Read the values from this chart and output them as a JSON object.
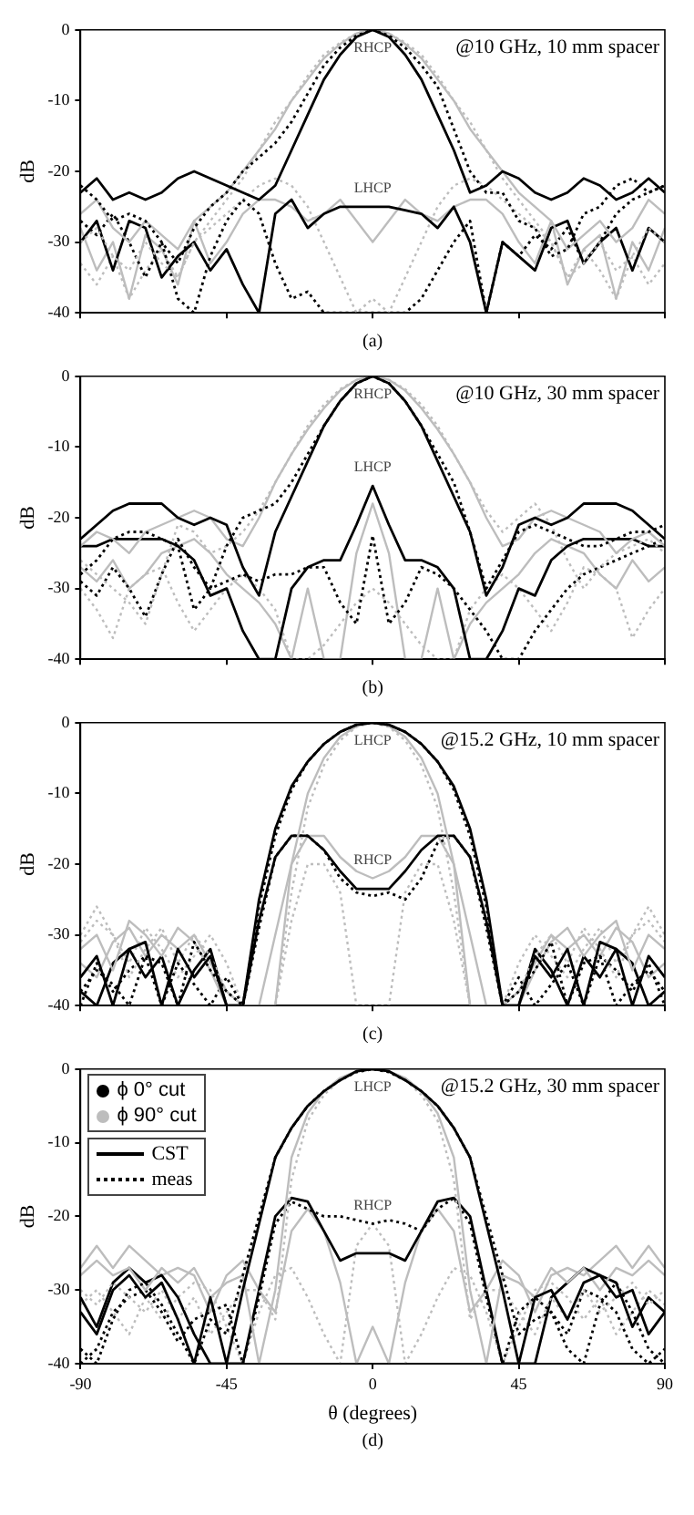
{
  "chart_data": [
    {
      "type": "line",
      "ylabel": "dB",
      "xlim": [
        -90,
        90
      ],
      "xticks": [
        -90,
        -45,
        0,
        45,
        90
      ],
      "ylim": [
        -40,
        0
      ],
      "yticks": [
        -40,
        -30,
        -20,
        -10,
        0
      ],
      "tick_labels": "y",
      "marker": "none",
      "x": [
        -90,
        -85,
        -80,
        -75,
        -70,
        -65,
        -60,
        -55,
        -50,
        -45,
        -40,
        -35,
        -30,
        -25,
        -20,
        -15,
        -10,
        -5,
        0,
        5,
        10,
        15,
        20,
        25,
        30,
        35,
        40,
        45,
        50,
        55,
        60,
        65,
        70,
        75,
        80,
        85,
        90
      ],
      "annotations": [
        "@10 GHz, 10 mm spacer",
        "(a)",
        "RHCP",
        "LHCP"
      ],
      "series": [
        {
          "color": "#000000",
          "line_style": "solid",
          "values": [
            -23,
            -21,
            -24,
            -23,
            -24,
            -23,
            -21,
            -20,
            -21,
            -22,
            -23,
            -24,
            -22,
            -17,
            -12,
            -7,
            -3.5,
            -1,
            0,
            -1,
            -3.5,
            -7,
            -12,
            -17,
            -23,
            -22,
            -20,
            -21,
            -23,
            -24,
            -23,
            -21,
            -22,
            -24,
            -23,
            -21,
            -23
          ]
        },
        {
          "color": "#000000",
          "line_style": "dotted",
          "values": [
            -22,
            -24,
            -27,
            -26,
            -27,
            -30,
            -33,
            -28,
            -25,
            -23,
            -20,
            -18,
            -16,
            -13,
            -9,
            -5,
            -2.5,
            -0.8,
            0,
            -0.8,
            -2.5,
            -5,
            -8,
            -14,
            -20,
            -23,
            -23,
            -27,
            -28,
            -32,
            -31,
            -26,
            -25,
            -22,
            -21,
            -23,
            -22
          ]
        },
        {
          "color": "#bdbdbd",
          "line_style": "solid",
          "values": [
            -26,
            -24,
            -28,
            -30,
            -27,
            -29,
            -31,
            -27,
            -25,
            -23,
            -20,
            -17,
            -14,
            -10,
            -7,
            -4,
            -2,
            -0.5,
            0,
            -0.5,
            -2,
            -4,
            -7,
            -10,
            -14,
            -17,
            -20,
            -23,
            -25,
            -27,
            -31,
            -29,
            -27,
            -30,
            -28,
            -24,
            -26
          ]
        },
        {
          "color": "#bdbdbd",
          "line_style": "dotted",
          "values": [
            -30,
            -28,
            -32,
            -34,
            -30,
            -33,
            -35,
            -30,
            -27,
            -24,
            -21,
            -17,
            -13,
            -10,
            -6.5,
            -3.5,
            -1.8,
            -0.5,
            0,
            -0.5,
            -1.8,
            -3.5,
            -6.5,
            -10,
            -13,
            -17,
            -21,
            -24,
            -27,
            -30,
            -35,
            -33,
            -30,
            -34,
            -32,
            -28,
            -30
          ]
        },
        {
          "color": "#000000",
          "line_style": "solid",
          "values": [
            -30,
            -27,
            -34,
            -27,
            -28,
            -35,
            -32,
            -30,
            -34,
            -31,
            -36,
            -40,
            -26,
            -24,
            -28,
            -26,
            -25,
            -25,
            -25,
            -25,
            -25.5,
            -26,
            -28,
            -25,
            -30,
            -40,
            -30,
            -32,
            -34,
            -28,
            -27,
            -33,
            -30,
            -28,
            -34,
            -28,
            -30
          ]
        },
        {
          "color": "#000000",
          "line_style": "dotted",
          "values": [
            -27,
            -29,
            -26,
            -30,
            -35,
            -30,
            -38,
            -40,
            -32,
            -27,
            -24,
            -26,
            -33,
            -38,
            -37,
            -40,
            -40,
            -40,
            -40,
            -40,
            -40,
            -38,
            -34,
            -30,
            -27,
            -40,
            -30,
            -32,
            -29,
            -31,
            -28,
            -33,
            -30,
            -26,
            -24,
            -23,
            -22
          ]
        },
        {
          "color": "#bdbdbd",
          "line_style": "solid",
          "values": [
            -28,
            -34,
            -30,
            -38,
            -29,
            -31,
            -36,
            -27,
            -33,
            -30,
            -26,
            -24,
            -24,
            -25,
            -27,
            -26,
            -24,
            -27,
            -30,
            -27,
            -24,
            -26,
            -27,
            -25,
            -24,
            -24,
            -26,
            -30,
            -33,
            -27,
            -36,
            -31,
            -29,
            -38,
            -30,
            -34,
            -28
          ]
        },
        {
          "color": "#bdbdbd",
          "line_style": "dotted",
          "values": [
            -33,
            -36,
            -32,
            -38,
            -34,
            -31,
            -35,
            -30,
            -28,
            -26,
            -24,
            -22,
            -21,
            -22,
            -25,
            -30,
            -35,
            -40,
            -38,
            -40,
            -35,
            -30,
            -25,
            -22,
            -21,
            -22,
            -24,
            -26,
            -28,
            -30,
            -35,
            -31,
            -34,
            -38,
            -32,
            -36,
            -33
          ]
        }
      ]
    },
    {
      "type": "line",
      "ylabel": "dB",
      "xlim": [
        -90,
        90
      ],
      "xticks": [
        -90,
        -45,
        0,
        45,
        90
      ],
      "ylim": [
        -40,
        0
      ],
      "yticks": [
        -40,
        -30,
        -20,
        -10,
        0
      ],
      "tick_labels": "y",
      "marker": "none",
      "x": [
        -90,
        -85,
        -80,
        -75,
        -70,
        -65,
        -60,
        -55,
        -50,
        -45,
        -40,
        -35,
        -30,
        -25,
        -20,
        -15,
        -10,
        -5,
        0,
        5,
        10,
        15,
        20,
        25,
        30,
        35,
        40,
        45,
        50,
        55,
        60,
        65,
        70,
        75,
        80,
        85,
        90
      ],
      "annotations": [
        "@10 GHz, 30 mm spacer",
        "(b)",
        "RHCP",
        "LHCP"
      ],
      "series": [
        {
          "color": "#000000",
          "line_style": "solid",
          "values": [
            -23,
            -21,
            -19,
            -18,
            -18,
            -18,
            -20,
            -21,
            -20,
            -21,
            -27,
            -31,
            -22,
            -17,
            -12,
            -7,
            -3.5,
            -1,
            0,
            -1,
            -3.5,
            -7,
            -12,
            -17,
            -22,
            -31,
            -27,
            -21,
            -20,
            -21,
            -20,
            -18,
            -18,
            -18,
            -19,
            -21,
            -23
          ]
        },
        {
          "color": "#000000",
          "line_style": "dotted",
          "values": [
            -28,
            -26,
            -23,
            -22,
            -22,
            -23,
            -24,
            -33,
            -30,
            -24,
            -20,
            -19,
            -18,
            -15,
            -11,
            -7,
            -3.5,
            -1,
            0,
            -1,
            -3.5,
            -7,
            -11,
            -15,
            -22,
            -30,
            -26,
            -22,
            -21,
            -22,
            -23,
            -24,
            -24,
            -23,
            -22,
            -22,
            -21
          ]
        },
        {
          "color": "#bdbdbd",
          "line_style": "solid",
          "values": [
            -24,
            -22,
            -23,
            -25,
            -22,
            -21,
            -20,
            -19,
            -20,
            -23,
            -24,
            -20,
            -15,
            -11,
            -7.5,
            -4.5,
            -2,
            -0.5,
            0,
            -0.5,
            -2,
            -4.5,
            -7.5,
            -11,
            -15,
            -20,
            -24,
            -23,
            -20,
            -19,
            -20,
            -21,
            -22,
            -25,
            -23,
            -22,
            -24
          ]
        },
        {
          "color": "#bdbdbd",
          "line_style": "dotted",
          "values": [
            -26,
            -28,
            -30,
            -32,
            -35,
            -28,
            -21,
            -22,
            -25,
            -24,
            -22,
            -19,
            -15,
            -11,
            -7,
            -4,
            -1.8,
            -0.5,
            0,
            -0.5,
            -1.8,
            -4,
            -7,
            -11,
            -15,
            -19,
            -22,
            -20,
            -18,
            -21,
            -26,
            -30,
            -27,
            -25,
            -24,
            -23,
            -25
          ]
        },
        {
          "color": "#000000",
          "line_style": "solid",
          "values": [
            -24,
            -24,
            -23,
            -23,
            -23,
            -23,
            -24,
            -26,
            -31,
            -30,
            -36,
            -40,
            -40,
            -30,
            -27,
            -26,
            -26,
            -21,
            -15.5,
            -21,
            -26,
            -26,
            -27,
            -30,
            -40,
            -40,
            -36,
            -30,
            -31,
            -26,
            -24,
            -23,
            -23,
            -23,
            -23,
            -24,
            -24
          ]
        },
        {
          "color": "#000000",
          "line_style": "dotted",
          "values": [
            -29,
            -31,
            -27,
            -30,
            -34,
            -28,
            -23,
            -27,
            -30,
            -29,
            -28,
            -29,
            -28,
            -28,
            -27,
            -27,
            -32,
            -35,
            -22.5,
            -35,
            -32,
            -27,
            -28,
            -30,
            -33,
            -36,
            -40,
            -40,
            -36,
            -33,
            -30,
            -28,
            -27,
            -26,
            -25,
            -24,
            -23
          ]
        },
        {
          "color": "#bdbdbd",
          "line_style": "solid",
          "values": [
            -27,
            -29,
            -26,
            -30,
            -28,
            -25,
            -24,
            -23,
            -25,
            -28,
            -30,
            -32,
            -35,
            -40,
            -30,
            -40,
            -40,
            -25,
            -18,
            -25,
            -40,
            -40,
            -30,
            -40,
            -35,
            -32,
            -30,
            -28,
            -25,
            -23,
            -24,
            -25,
            -28,
            -30,
            -26,
            -29,
            -27
          ]
        },
        {
          "color": "#bdbdbd",
          "line_style": "dotted",
          "values": [
            -30,
            -33,
            -37,
            -30,
            -28,
            -27,
            -32,
            -36,
            -33,
            -30,
            -28,
            -30,
            -33,
            -40,
            -40,
            -38,
            -35,
            -32,
            -30,
            -32,
            -35,
            -38,
            -40,
            -40,
            -33,
            -30,
            -28,
            -30,
            -33,
            -36,
            -32,
            -27,
            -28,
            -30,
            -37,
            -33,
            -30
          ]
        }
      ]
    },
    {
      "type": "line",
      "ylabel": "dB",
      "xlim": [
        -90,
        90
      ],
      "xticks": [
        -90,
        -45,
        0,
        45,
        90
      ],
      "ylim": [
        -40,
        0
      ],
      "yticks": [
        -40,
        -30,
        -20,
        -10,
        0
      ],
      "tick_labels": "y",
      "marker": "none",
      "x": [
        -90,
        -85,
        -80,
        -75,
        -70,
        -65,
        -60,
        -55,
        -50,
        -45,
        -40,
        -35,
        -30,
        -25,
        -20,
        -15,
        -10,
        -5,
        0,
        5,
        10,
        15,
        20,
        25,
        30,
        35,
        40,
        45,
        50,
        55,
        60,
        65,
        70,
        75,
        80,
        85,
        90
      ],
      "annotations": [
        "@15.2 GHz, 10 mm spacer",
        "(c)",
        "LHCP",
        "RHCP"
      ],
      "series": [
        {
          "color": "#000000",
          "line_style": "solid",
          "values": [
            -36,
            -33,
            -40,
            -32,
            -31,
            -40,
            -32,
            -36,
            -33,
            -40,
            -40,
            -25,
            -15,
            -9,
            -5.5,
            -3,
            -1.3,
            -0.3,
            0,
            -0.3,
            -1.3,
            -3,
            -5.5,
            -9,
            -15,
            -25,
            -40,
            -40,
            -33,
            -36,
            -32,
            -40,
            -31,
            -32,
            -40,
            -33,
            -36
          ]
        },
        {
          "color": "#000000",
          "line_style": "dotted",
          "values": [
            -38,
            -35,
            -37,
            -40,
            -33,
            -34,
            -40,
            -31,
            -35,
            -38,
            -40,
            -26,
            -16,
            -9.5,
            -5.5,
            -3,
            -1.3,
            -0.3,
            0,
            -0.3,
            -1.3,
            -3,
            -5.5,
            -9.5,
            -16,
            -26,
            -40,
            -38,
            -35,
            -31,
            -40,
            -34,
            -33,
            -40,
            -37,
            -35,
            -38
          ]
        },
        {
          "color": "#bdbdbd",
          "line_style": "solid",
          "values": [
            -32,
            -30,
            -35,
            -28,
            -30,
            -33,
            -29,
            -31,
            -35,
            -40,
            -40,
            -40,
            -40,
            -20,
            -10,
            -5,
            -2,
            -0.5,
            0,
            -0.5,
            -2,
            -5,
            -10,
            -20,
            -40,
            -40,
            -40,
            -40,
            -35,
            -31,
            -29,
            -33,
            -30,
            -28,
            -35,
            -30,
            -32
          ]
        },
        {
          "color": "#bdbdbd",
          "line_style": "dotted",
          "values": [
            -30,
            -26,
            -30,
            -36,
            -32,
            -29,
            -34,
            -30,
            -33,
            -38,
            -40,
            -40,
            -40,
            -24,
            -12,
            -6,
            -2.5,
            -0.6,
            0,
            -0.6,
            -2.5,
            -6,
            -12,
            -24,
            -40,
            -40,
            -40,
            -38,
            -33,
            -30,
            -34,
            -29,
            -32,
            -36,
            -30,
            -26,
            -30
          ]
        },
        {
          "color": "#000000",
          "line_style": "solid",
          "values": [
            -38,
            -40,
            -34,
            -32,
            -36,
            -33,
            -40,
            -35,
            -32,
            -40,
            -40,
            -28,
            -19,
            -16,
            -16,
            -18,
            -21,
            -23.5,
            -23.5,
            -23.5,
            -21,
            -18,
            -16,
            -16,
            -19,
            -28,
            -40,
            -40,
            -32,
            -35,
            -40,
            -33,
            -36,
            -32,
            -34,
            -40,
            -38
          ]
        },
        {
          "color": "#000000",
          "line_style": "dotted",
          "values": [
            -40,
            -34,
            -38,
            -35,
            -33,
            -40,
            -34,
            -37,
            -40,
            -36,
            -40,
            -29,
            -19,
            -16,
            -16,
            -18,
            -22,
            -24,
            -24.5,
            -24,
            -25,
            -22,
            -17,
            -16,
            -19,
            -29,
            -40,
            -36,
            -40,
            -37,
            -34,
            -40,
            -33,
            -35,
            -38,
            -34,
            -40
          ]
        },
        {
          "color": "#bdbdbd",
          "line_style": "solid",
          "values": [
            -34,
            -36,
            -31,
            -29,
            -33,
            -30,
            -32,
            -30,
            -34,
            -38,
            -40,
            -40,
            -30,
            -20,
            -16,
            -16,
            -19,
            -21,
            -22,
            -21,
            -19,
            -16,
            -16,
            -20,
            -30,
            -40,
            -40,
            -38,
            -34,
            -30,
            -32,
            -30,
            -33,
            -29,
            -31,
            -36,
            -34
          ]
        },
        {
          "color": "#bdbdbd",
          "line_style": "dotted",
          "values": [
            -31,
            -28,
            -30,
            -34,
            -29,
            -32,
            -36,
            -33,
            -30,
            -34,
            -40,
            -40,
            -40,
            -28,
            -20,
            -20,
            -24,
            -40,
            -40,
            -40,
            -24,
            -20,
            -20,
            -28,
            -40,
            -40,
            -40,
            -34,
            -30,
            -33,
            -36,
            -32,
            -29,
            -34,
            -30,
            -28,
            -31
          ]
        }
      ]
    },
    {
      "type": "line",
      "ylabel": "dB",
      "xlabel": "θ (degrees)",
      "xlim": [
        -90,
        90
      ],
      "xticks": [
        -90,
        -45,
        0,
        45,
        90
      ],
      "ylim": [
        -40,
        0
      ],
      "yticks": [
        -40,
        -30,
        -20,
        -10,
        0
      ],
      "marker": "none",
      "x": [
        -90,
        -85,
        -80,
        -75,
        -70,
        -65,
        -60,
        -55,
        -50,
        -45,
        -40,
        -35,
        -30,
        -25,
        -20,
        -15,
        -10,
        -5,
        0,
        5,
        10,
        15,
        20,
        25,
        30,
        35,
        40,
        45,
        50,
        55,
        60,
        65,
        70,
        75,
        80,
        85,
        90
      ],
      "annotations": [
        "@15.2 GHz, 30 mm spacer",
        "(d)",
        "LHCP",
        "RHCP",
        "ϕ 0° cut",
        "ϕ 90° cut",
        "CST",
        "meas"
      ],
      "series": [
        {
          "color": "#000000",
          "line_style": "solid",
          "values": [
            -33,
            -36,
            -30,
            -28,
            -31,
            -29,
            -34,
            -40,
            -31,
            -40,
            -30,
            -21,
            -12,
            -8,
            -5,
            -3,
            -1.5,
            -0.3,
            0,
            -0.3,
            -1.5,
            -3,
            -5,
            -8,
            -12,
            -21,
            -30,
            -40,
            -31,
            -30,
            -34,
            -29,
            -28,
            -31,
            -30,
            -36,
            -33
          ]
        },
        {
          "color": "#000000",
          "line_style": "dotted",
          "values": [
            -38,
            -40,
            -34,
            -30,
            -29,
            -32,
            -36,
            -40,
            -34,
            -36,
            -28,
            -20,
            -12,
            -8,
            -5,
            -3,
            -1.5,
            -0.4,
            0,
            -0.4,
            -1.5,
            -3,
            -5,
            -8,
            -12,
            -20,
            -28,
            -36,
            -34,
            -33,
            -38,
            -40,
            -32,
            -29,
            -33,
            -38,
            -40
          ]
        },
        {
          "color": "#bdbdbd",
          "line_style": "solid",
          "values": [
            -28,
            -26,
            -28,
            -27,
            -30,
            -27,
            -29,
            -27,
            -31,
            -29,
            -28,
            -40,
            -30,
            -12,
            -6,
            -3,
            -1.2,
            -0.3,
            0,
            -0.3,
            -1.2,
            -3,
            -6,
            -12,
            -30,
            -40,
            -28,
            -29,
            -31,
            -27,
            -29,
            -27,
            -30,
            -27,
            -28,
            -26,
            -28
          ]
        },
        {
          "color": "#bdbdbd",
          "line_style": "dotted",
          "values": [
            -30,
            -32,
            -29,
            -31,
            -33,
            -30,
            -34,
            -31,
            -36,
            -33,
            -30,
            -30,
            -34,
            -15,
            -7,
            -3.5,
            -1.5,
            -0.4,
            0,
            -0.4,
            -1.5,
            -3.5,
            -7,
            -15,
            -34,
            -30,
            -30,
            -33,
            -36,
            -31,
            -34,
            -30,
            -33,
            -31,
            -29,
            -32,
            -30
          ]
        },
        {
          "color": "#000000",
          "line_style": "solid",
          "values": [
            -31,
            -35,
            -29,
            -27,
            -29,
            -28,
            -31,
            -36,
            -40,
            -40,
            -40,
            -30,
            -20,
            -17.5,
            -18,
            -22,
            -26,
            -25,
            -25,
            -25,
            -26,
            -22,
            -18,
            -17.5,
            -20,
            -30,
            -40,
            -40,
            -40,
            -31,
            -29,
            -27,
            -28,
            -29,
            -35,
            -31,
            -33
          ]
        },
        {
          "color": "#000000",
          "line_style": "dotted",
          "values": [
            -40,
            -38,
            -33,
            -31,
            -30,
            -33,
            -37,
            -34,
            -33,
            -32,
            -40,
            -31,
            -21,
            -18,
            -19,
            -20,
            -20,
            -20.5,
            -21,
            -20.5,
            -21,
            -22,
            -19,
            -17.5,
            -21,
            -31,
            -40,
            -33,
            -31,
            -33,
            -36,
            -30,
            -31,
            -33,
            -38,
            -40,
            -38
          ]
        },
        {
          "color": "#bdbdbd",
          "line_style": "solid",
          "values": [
            -27,
            -24,
            -27,
            -24,
            -26,
            -28,
            -27,
            -28,
            -33,
            -28,
            -26,
            -30,
            -33,
            -22,
            -19,
            -22,
            -29,
            -40,
            -35,
            -40,
            -29,
            -22,
            -19,
            -22,
            -33,
            -30,
            -26,
            -28,
            -33,
            -28,
            -27,
            -28,
            -26,
            -24,
            -27,
            -24,
            -27
          ]
        },
        {
          "color": "#bdbdbd",
          "line_style": "dotted",
          "values": [
            -32,
            -30,
            -33,
            -36,
            -31,
            -34,
            -31,
            -29,
            -30,
            -35,
            -40,
            -33,
            -28,
            -27,
            -31,
            -36,
            -40,
            -24,
            -21,
            -24,
            -40,
            -36,
            -31,
            -27,
            -28,
            -33,
            -40,
            -35,
            -30,
            -29,
            -31,
            -34,
            -31,
            -36,
            -33,
            -30,
            -32
          ]
        }
      ]
    }
  ]
}
